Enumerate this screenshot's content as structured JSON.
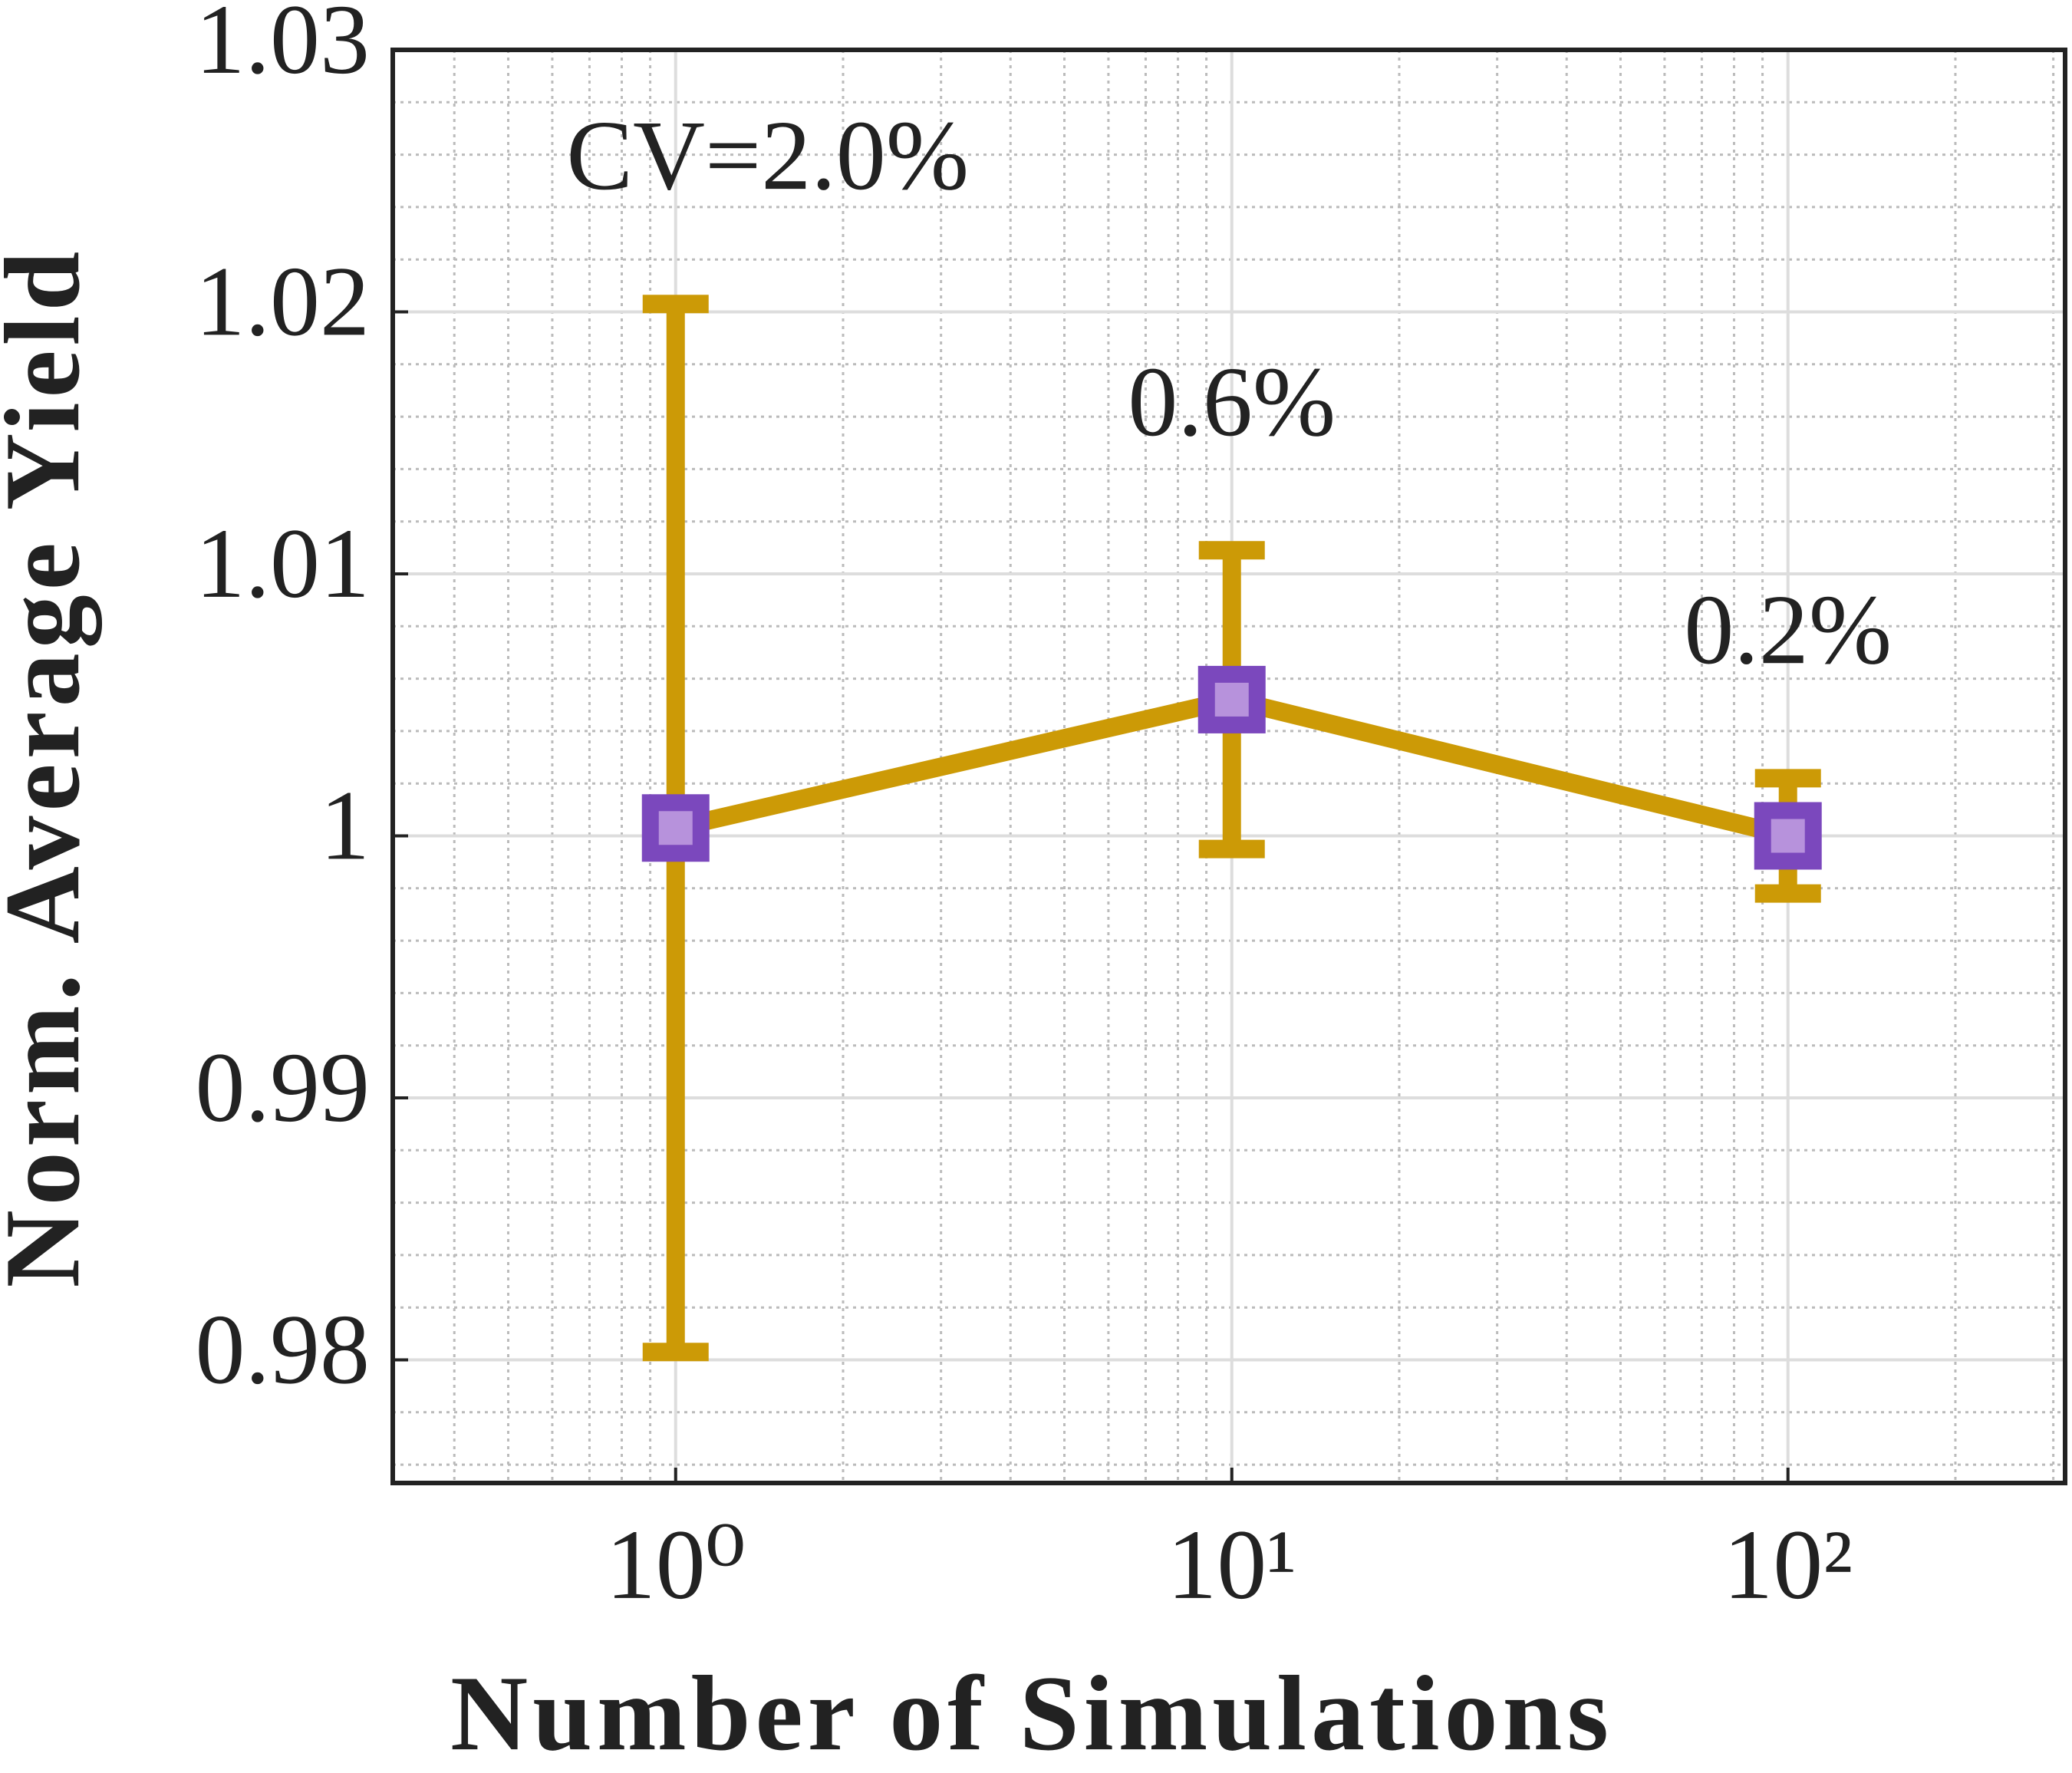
{
  "chart_data": {
    "type": "line",
    "xlabel": "Number of Simulations",
    "ylabel": "Norm. Average Yield",
    "x": [
      1,
      10,
      100
    ],
    "xlog": true,
    "series": [
      {
        "color": "#cc9a06",
        "marker_color": "#7b48bd",
        "marker_fill": "#b792dc",
        "values": [
          1.0003,
          1.0052,
          1.0
        ],
        "errors": [
          0.02,
          0.0057,
          0.0022
        ]
      }
    ],
    "annotations": [
      "CV=2.0%",
      "0.6%",
      "0.2%"
    ],
    "xlim": [
      0.31,
      315
    ],
    "xticks": [
      {
        "value": 1,
        "label": "10⁰"
      },
      {
        "value": 10,
        "label": "10¹"
      },
      {
        "value": 100,
        "label": "10²"
      }
    ],
    "ylim": [
      0.9753,
      1.03
    ],
    "yticks": [
      0.98,
      0.99,
      1,
      1.01,
      1.02,
      1.03
    ],
    "grid": true,
    "minor_grid": true
  }
}
